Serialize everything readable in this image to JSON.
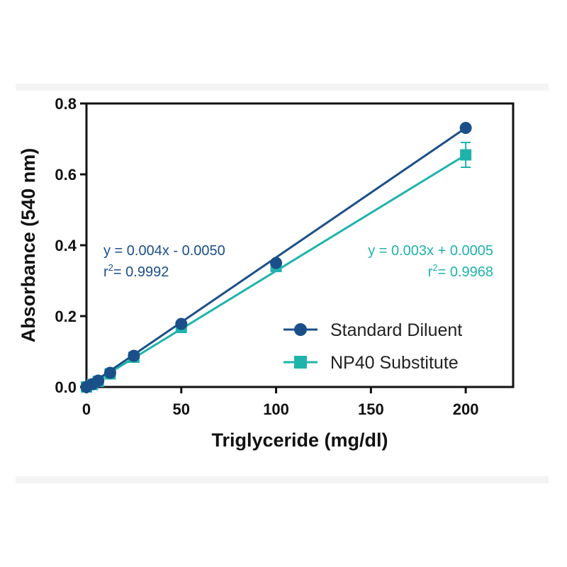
{
  "chart_data": {
    "type": "line",
    "xlabel": "Triglyceride (mg/dl)",
    "ylabel": "Absorbance (540 nm)",
    "xlim": [
      0,
      225
    ],
    "ylim": [
      0,
      0.8
    ],
    "xticks": [
      0,
      50,
      100,
      150,
      200
    ],
    "yticks": [
      0.0,
      0.2,
      0.4,
      0.6,
      0.8
    ],
    "xtick_labels": [
      "0",
      "50",
      "100",
      "150",
      "200"
    ],
    "ytick_labels": [
      "0.0",
      "0.2",
      "0.4",
      "0.6",
      "0.8"
    ],
    "grid": false,
    "legend_position": "lower-right",
    "series": [
      {
        "name": "Standard Diluent",
        "color": "#1b4f8a",
        "marker": "circle",
        "x": [
          0,
          3.125,
          6.25,
          12.5,
          25,
          50,
          100,
          200
        ],
        "y": [
          0.0,
          0.008,
          0.018,
          0.04,
          0.088,
          0.178,
          0.35,
          0.731
        ],
        "fit_line": {
          "x": [
            0,
            200
          ],
          "y": [
            0.0,
            0.731
          ]
        },
        "equation": "y = 0.004x - 0.0050",
        "r2_prefix": "r",
        "r2_superscript": "2",
        "r2_value": "= 0.9992"
      },
      {
        "name": "NP40 Substitute",
        "color": "#1fb3ac",
        "marker": "square",
        "x": [
          0,
          3.125,
          6.25,
          12.5,
          25,
          50,
          100,
          200
        ],
        "y": [
          0.0,
          0.007,
          0.016,
          0.037,
          0.084,
          0.168,
          0.34,
          0.655
        ],
        "error": [
          0,
          0,
          0,
          0,
          0,
          0,
          0,
          0.035
        ],
        "fit_line": {
          "x": [
            0,
            200
          ],
          "y": [
            0.0,
            0.655
          ]
        },
        "equation": "y = 0.003x + 0.0005",
        "r2_prefix": "r",
        "r2_superscript": "2",
        "r2_value": "= 0.9968"
      }
    ]
  }
}
